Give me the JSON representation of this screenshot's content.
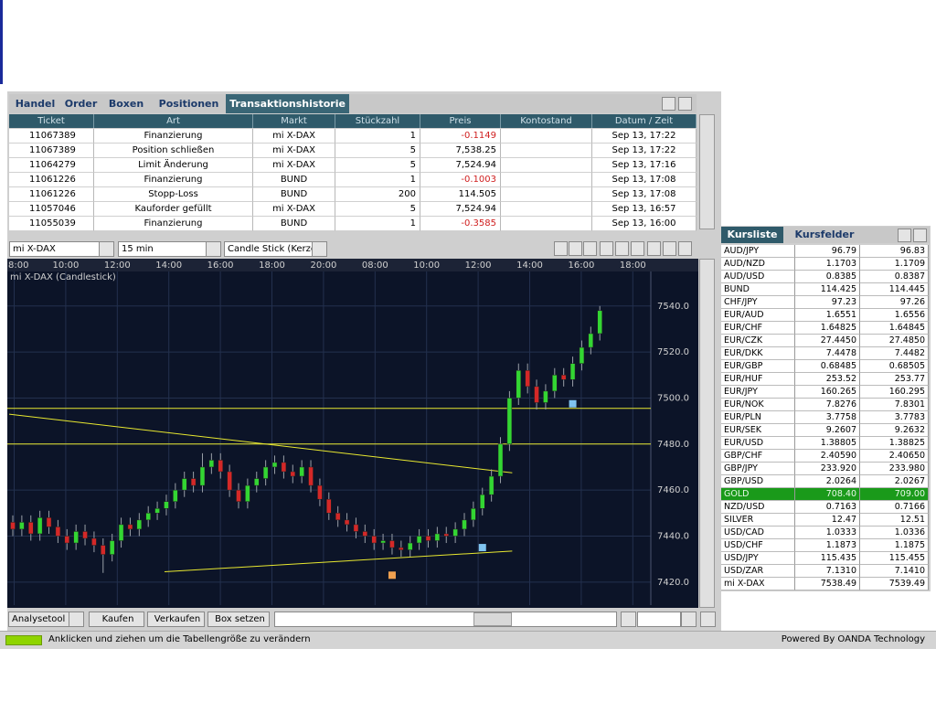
{
  "tabs": [
    "Handel",
    "Order",
    "Boxen",
    "Positionen",
    "Transaktionshistorie"
  ],
  "active_tab": 4,
  "transactions": {
    "columns": [
      "Ticket",
      "Art",
      "Markt",
      "Stückzahl",
      "Preis",
      "Kontostand",
      "Datum / Zeit"
    ],
    "rows": [
      {
        "ticket": "11067389",
        "art": "Finanzierung",
        "markt": "mi X-DAX",
        "units": 1,
        "price": "-0.1149",
        "date": "Sep 13, 17:22"
      },
      {
        "ticket": "11067389",
        "art": "Position schließen",
        "markt": "mi X-DAX",
        "units": 5,
        "price": "7,538.25",
        "date": "Sep 13, 17:22"
      },
      {
        "ticket": "11064279",
        "art": "Limit Änderung",
        "markt": "mi X-DAX",
        "units": 5,
        "price": "7,524.94",
        "date": "Sep 13, 17:16"
      },
      {
        "ticket": "11061226",
        "art": "Finanzierung",
        "markt": "BUND",
        "units": 1,
        "price": "-0.1003",
        "date": "Sep 13, 17:08"
      },
      {
        "ticket": "11061226",
        "art": "Stopp-Loss",
        "markt": "BUND",
        "units": 200,
        "price": "114.505",
        "date": "Sep 13, 17:08"
      },
      {
        "ticket": "11057046",
        "art": "Kauforder gefüllt",
        "markt": "mi X-DAX",
        "units": 5,
        "price": "7,524.94",
        "date": "Sep 13, 16:57"
      },
      {
        "ticket": "11055039",
        "art": "Finanzierung",
        "markt": "BUND",
        "units": 1,
        "price": "-0.3585",
        "date": "Sep 13, 16:00"
      }
    ]
  },
  "toolbar": {
    "instrument": "mi X-DAX",
    "interval": "15 min",
    "chart_style": "Candle Stick (Kerze"
  },
  "chart_data": {
    "type": "candlestick",
    "legend": "mi X-DAX (Candlestick)",
    "time_labels": [
      "8:00",
      "10:00",
      "12:00",
      "14:00",
      "16:00",
      "18:00",
      "20:00",
      "08:00",
      "10:00",
      "12:00",
      "14:00",
      "16:00",
      "18:00"
    ],
    "ylim": [
      7410,
      7555
    ],
    "yticks": [
      {
        "value": 7420,
        "label": "7420.0"
      },
      {
        "value": 7440,
        "label": "7440.0"
      },
      {
        "value": 7460,
        "label": "7460.0"
      },
      {
        "value": 7480,
        "label": "7480.0"
      },
      {
        "value": 7500,
        "label": "7500.0"
      },
      {
        "value": 7520,
        "label": "7520.0"
      },
      {
        "value": 7540,
        "label": "7540.0"
      }
    ],
    "up_color": "#33d633",
    "down_color": "#d42828",
    "open": [
      7446,
      7443,
      7446,
      7441,
      7448,
      7444,
      7440,
      7437,
      7442,
      7439,
      7436,
      7432,
      7438,
      7445,
      7443,
      7447,
      7450,
      7452,
      7455,
      7460,
      7465,
      7462,
      7470,
      7473,
      7468,
      7460,
      7455,
      7462,
      7465,
      7470,
      7472,
      7468,
      7466,
      7470,
      7462,
      7456,
      7450,
      7447,
      7445,
      7442,
      7440,
      7437,
      7438,
      7435,
      7434,
      7437,
      7440,
      7438,
      7441,
      7440,
      7443,
      7447,
      7452,
      7458,
      7466,
      7480,
      7500,
      7512,
      7505,
      7498,
      7503,
      7510,
      7508,
      7515,
      7522,
      7528
    ],
    "high": [
      7449,
      7449,
      7449,
      7451,
      7451,
      7447,
      7443,
      7445,
      7445,
      7442,
      7439,
      7441,
      7448,
      7448,
      7450,
      7453,
      7455,
      7458,
      7463,
      7468,
      7468,
      7476,
      7476,
      7476,
      7471,
      7463,
      7465,
      7468,
      7473,
      7475,
      7475,
      7471,
      7473,
      7473,
      7465,
      7459,
      7453,
      7450,
      7448,
      7445,
      7443,
      7441,
      7441,
      7438,
      7440,
      7443,
      7443,
      7444,
      7444,
      7446,
      7450,
      7455,
      7461,
      7469,
      7483,
      7503,
      7515,
      7515,
      7508,
      7506,
      7513,
      7513,
      7518,
      7525,
      7531,
      7540
    ],
    "low": [
      7440,
      7440,
      7438,
      7438,
      7441,
      7437,
      7434,
      7434,
      7436,
      7433,
      7424,
      7429,
      7435,
      7440,
      7440,
      7444,
      7447,
      7449,
      7452,
      7457,
      7459,
      7459,
      7467,
      7465,
      7457,
      7452,
      7452,
      7459,
      7462,
      7467,
      7465,
      7463,
      7463,
      7459,
      7453,
      7447,
      7444,
      7442,
      7439,
      7437,
      7434,
      7434,
      7432,
      7431,
      7431,
      7434,
      7435,
      7435,
      7437,
      7437,
      7440,
      7444,
      7449,
      7455,
      7463,
      7477,
      7497,
      7502,
      7495,
      7495,
      7500,
      7505,
      7505,
      7512,
      7519,
      7525
    ],
    "close": [
      7443,
      7446,
      7441,
      7448,
      7444,
      7440,
      7437,
      7442,
      7439,
      7436,
      7432,
      7438,
      7445,
      7443,
      7447,
      7450,
      7452,
      7455,
      7460,
      7465,
      7462,
      7470,
      7473,
      7468,
      7460,
      7455,
      7462,
      7465,
      7470,
      7472,
      7468,
      7466,
      7470,
      7462,
      7456,
      7450,
      7447,
      7445,
      7442,
      7440,
      7437,
      7438,
      7435,
      7434,
      7437,
      7440,
      7438,
      7441,
      7440,
      7443,
      7447,
      7452,
      7458,
      7466,
      7480,
      7500,
      7512,
      7505,
      7498,
      7503,
      7510,
      7508,
      7515,
      7522,
      7528,
      7538
    ],
    "hlines": [
      7495.5,
      7480
    ],
    "line_color": "#e8e830",
    "trendlines": [
      {
        "from": [
          -0.4,
          7493
        ],
        "to": [
          55.3,
          7467.5
        ]
      },
      {
        "from": [
          16.8,
          7424.5
        ],
        "to": [
          55.3,
          7433.5
        ]
      }
    ],
    "markers": [
      {
        "index": 62,
        "price": 7497.5,
        "color": "#7fc4f0"
      },
      {
        "index": 52,
        "price": 7435,
        "color": "#7fc4f0"
      },
      {
        "index": 42,
        "price": 7423,
        "color": "#f0a050"
      }
    ]
  },
  "buttons": [
    "Analysetool",
    "Kaufen",
    "Verkaufen",
    "Box setzen"
  ],
  "status": "Anklicken und ziehen um die Tabellengröße zu verändern",
  "powered": "Powered By OANDA Technology",
  "quotes": {
    "tabs": [
      "Kursliste",
      "Kursfelder"
    ],
    "highlight_row": 19,
    "rows": [
      [
        "AUD/JPY",
        "96.79",
        "96.83"
      ],
      [
        "AUD/NZD",
        "1.1703",
        "1.1709"
      ],
      [
        "AUD/USD",
        "0.8385",
        "0.8387"
      ],
      [
        "BUND",
        "114.425",
        "114.445"
      ],
      [
        "CHF/JPY",
        "97.23",
        "97.26"
      ],
      [
        "EUR/AUD",
        "1.6551",
        "1.6556"
      ],
      [
        "EUR/CHF",
        "1.64825",
        "1.64845"
      ],
      [
        "EUR/CZK",
        "27.4450",
        "27.4850"
      ],
      [
        "EUR/DKK",
        "7.4478",
        "7.4482"
      ],
      [
        "EUR/GBP",
        "0.68485",
        "0.68505"
      ],
      [
        "EUR/HUF",
        "253.52",
        "253.77"
      ],
      [
        "EUR/JPY",
        "160.265",
        "160.295"
      ],
      [
        "EUR/NOK",
        "7.8276",
        "7.8301"
      ],
      [
        "EUR/PLN",
        "3.7758",
        "3.7783"
      ],
      [
        "EUR/SEK",
        "9.2607",
        "9.2632"
      ],
      [
        "EUR/USD",
        "1.38805",
        "1.38825"
      ],
      [
        "GBP/CHF",
        "2.40590",
        "2.40650"
      ],
      [
        "GBP/JPY",
        "233.920",
        "233.980"
      ],
      [
        "GBP/USD",
        "2.0264",
        "2.0267"
      ],
      [
        "GOLD",
        "708.40",
        "709.00"
      ],
      [
        "NZD/USD",
        "0.7163",
        "0.7166"
      ],
      [
        "SILVER",
        "12.47",
        "12.51"
      ],
      [
        "USD/CAD",
        "1.0333",
        "1.0336"
      ],
      [
        "USD/CHF",
        "1.1873",
        "1.1875"
      ],
      [
        "USD/JPY",
        "115.435",
        "115.455"
      ],
      [
        "USD/ZAR",
        "7.1310",
        "7.1410"
      ],
      [
        "mi X-DAX",
        "7538.49",
        "7539.49"
      ]
    ]
  }
}
